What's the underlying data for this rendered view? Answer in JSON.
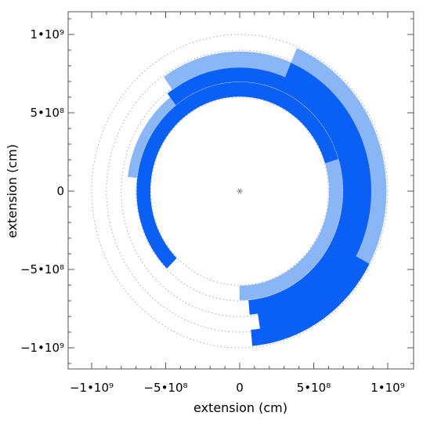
{
  "chart_data": {
    "type": "polar-ring-segments",
    "xlabel": "extension (cm)",
    "ylabel": "extension (cm)",
    "xlim": [
      -1050000000.0,
      1100000000.0
    ],
    "ylim": [
      -1100000000.0,
      1100000000.0
    ],
    "xticks": [
      {
        "value": -1000000000.0,
        "label": "−1•10⁹"
      },
      {
        "value": -500000000.0,
        "label": "−5•10⁸"
      },
      {
        "value": 0,
        "label": "0"
      },
      {
        "value": 500000000.0,
        "label": "5•10⁸"
      },
      {
        "value": 1000000000.0,
        "label": "1•10⁹"
      }
    ],
    "yticks": [
      {
        "value": 1000000000.0,
        "label": "1•10⁹"
      },
      {
        "value": 500000000.0,
        "label": "5•10⁸"
      },
      {
        "value": 0,
        "label": "0"
      },
      {
        "value": -500000000.0,
        "label": "−5•10⁸"
      },
      {
        "value": -1000000000.0,
        "label": "−1•10⁹"
      }
    ],
    "center_marker": [
      0,
      0
    ],
    "guide_circles": [
      600000000.0,
      700000000.0,
      800000000.0,
      900000000.0,
      1000000000.0
    ],
    "colors": {
      "dark": "#0a5ff5",
      "light": "#8ab6f5"
    },
    "segments": [
      {
        "r_inner": 605000000.0,
        "r_outer": 695000000.0,
        "theta_start": 225,
        "theta_end": 178,
        "shade": "dark"
      },
      {
        "r_inner": 605000000.0,
        "r_outer": 695000000.0,
        "theta_start": 178,
        "theta_end": 90,
        "shade": "dark"
      },
      {
        "r_inner": 605000000.0,
        "r_outer": 695000000.0,
        "theta_start": 90,
        "theta_end": 17,
        "shade": "dark"
      },
      {
        "r_inner": 605000000.0,
        "r_outer": 695000000.0,
        "theta_start": 17,
        "theta_end": -90,
        "shade": "light"
      },
      {
        "r_inner": 700000000.0,
        "r_outer": 760000000.0,
        "theta_start": 173,
        "theta_end": 128,
        "shade": "light"
      },
      {
        "r_inner": 700000000.0,
        "r_outer": 790000000.0,
        "theta_start": 128,
        "theta_end": 17,
        "shade": "dark"
      },
      {
        "r_inner": 700000000.0,
        "r_outer": 790000000.0,
        "theta_start": 17,
        "theta_end": -85,
        "shade": "dark"
      },
      {
        "r_inner": 790000000.0,
        "r_outer": 890000000.0,
        "theta_start": 125,
        "theta_end": 67,
        "shade": "light"
      },
      {
        "r_inner": 790000000.0,
        "r_outer": 890000000.0,
        "theta_start": 67,
        "theta_end": 17,
        "shade": "dark"
      },
      {
        "r_inner": 790000000.0,
        "r_outer": 890000000.0,
        "theta_start": 17,
        "theta_end": -81,
        "shade": "dark"
      },
      {
        "r_inner": 890000000.0,
        "r_outer": 990000000.0,
        "theta_start": 67,
        "theta_end": 15,
        "shade": "light"
      },
      {
        "r_inner": 890000000.0,
        "r_outer": 990000000.0,
        "theta_start": 15,
        "theta_end": -28,
        "shade": "light"
      },
      {
        "r_inner": 890000000.0,
        "r_outer": 990000000.0,
        "theta_start": -28,
        "theta_end": -85,
        "shade": "dark"
      }
    ]
  }
}
